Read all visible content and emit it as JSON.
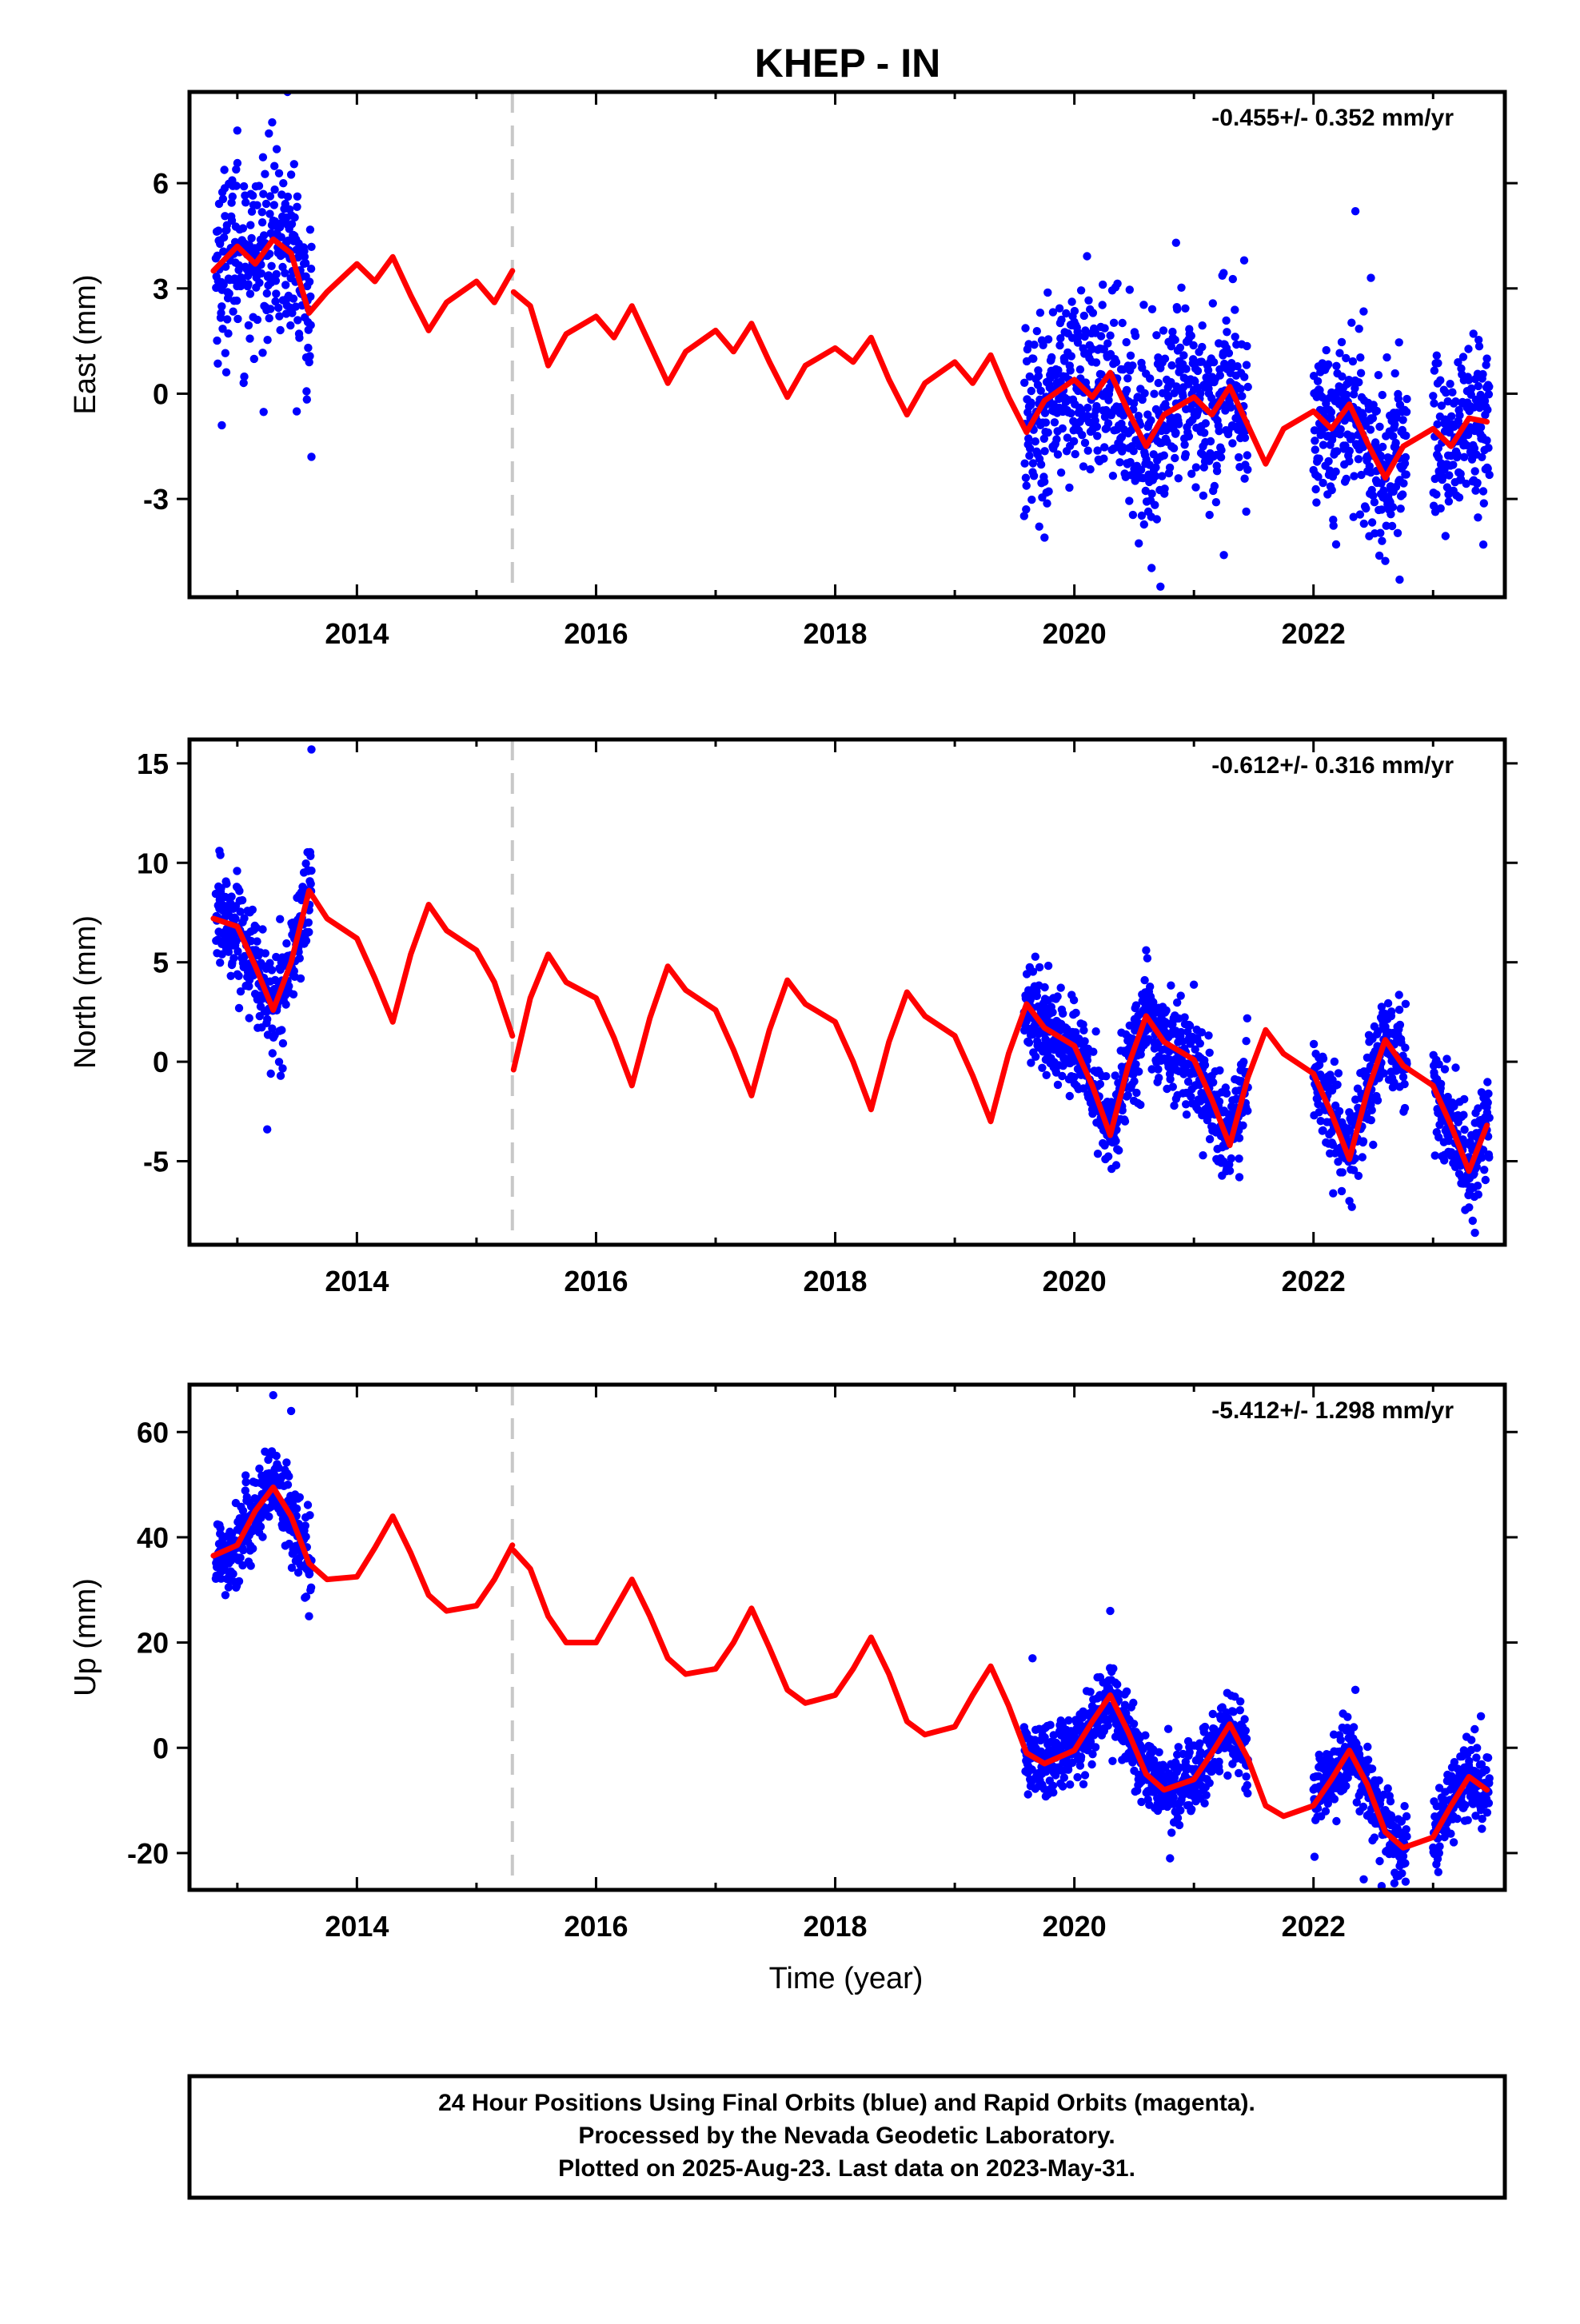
{
  "title": "KHEP - IN",
  "xlabel": "Time (year)",
  "footer": {
    "line1": "24 Hour Positions Using Final Orbits (blue) and Rapid Orbits (magenta).",
    "line2": "Processed by the Nevada Geodetic Laboratory.",
    "line3": "Plotted on 2025-Aug-23. Last data on 2023-May-31."
  },
  "colors": {
    "observations": "#0000ff",
    "model": "#ff0000",
    "step": "#c8c8c8",
    "frame": "#000000"
  },
  "chart_data": [
    {
      "type": "scatter",
      "ylabel": "East (mm)",
      "rate": "-0.455+/- 0.352 mm/yr",
      "xlim": [
        2012.6,
        2023.6
      ],
      "ylim": [
        -5.8,
        8.6
      ],
      "xticks": [
        "2014",
        "2016",
        "2018",
        "2020",
        "2022"
      ],
      "yticks": [
        "-3",
        "0",
        "3",
        "6"
      ],
      "step_at": 2015.3,
      "model": {
        "x": [
          2012.8,
          2013.0,
          2013.15,
          2013.3,
          2013.45,
          2013.6,
          2013.75,
          2014.0,
          2014.15,
          2014.3,
          2014.45,
          2014.6,
          2014.75,
          2015.0,
          2015.15,
          2015.3,
          2015.31,
          2015.45,
          2015.6,
          2015.75,
          2016.0,
          2016.15,
          2016.3,
          2016.45,
          2016.6,
          2016.75,
          2017.0,
          2017.15,
          2017.3,
          2017.45,
          2017.6,
          2017.75,
          2018.0,
          2018.15,
          2018.3,
          2018.45,
          2018.6,
          2018.75,
          2019.0,
          2019.15,
          2019.3,
          2019.45,
          2019.6,
          2019.75,
          2020.0,
          2020.15,
          2020.3,
          2020.45,
          2020.6,
          2020.75,
          2021.0,
          2021.15,
          2021.3,
          2021.45,
          2021.6,
          2021.75,
          2022.0,
          2022.15,
          2022.3,
          2022.45,
          2022.6,
          2022.75,
          2023.0,
          2023.15,
          2023.3,
          2023.45
        ],
        "y": [
          3.5,
          4.2,
          3.7,
          4.4,
          4.0,
          2.3,
          2.9,
          3.7,
          3.2,
          3.9,
          2.8,
          1.8,
          2.6,
          3.2,
          2.6,
          3.5,
          2.9,
          2.5,
          0.8,
          1.7,
          2.2,
          1.6,
          2.5,
          1.4,
          0.3,
          1.2,
          1.8,
          1.2,
          2.0,
          0.9,
          -0.1,
          0.8,
          1.3,
          0.9,
          1.6,
          0.4,
          -0.6,
          0.3,
          0.9,
          0.3,
          1.1,
          -0.1,
          -1.1,
          -0.2,
          0.4,
          -0.1,
          0.6,
          -0.5,
          -1.5,
          -0.6,
          -0.1,
          -0.6,
          0.2,
          -0.9,
          -2.0,
          -1.0,
          -0.5,
          -1.0,
          -0.3,
          -1.4,
          -2.4,
          -1.5,
          -1.0,
          -1.5,
          -0.7,
          -0.8
        ]
      },
      "observation_spans": [
        {
          "from": 2012.82,
          "to": 2013.62,
          "spread": 1.3,
          "outliers": [
            [
              2013.0,
              7.5
            ],
            [
              2013.42,
              8.6
            ],
            [
              2013.62,
              -1.8
            ],
            [
              2012.87,
              -0.9
            ]
          ]
        },
        {
          "from": 2019.58,
          "to": 2021.45,
          "spread": 1.3,
          "outliers": [
            [
              2020.85,
              4.3
            ],
            [
              2020.72,
              -5.5
            ],
            [
              2019.75,
              -4.1
            ],
            [
              2021.25,
              -4.6
            ],
            [
              2021.42,
              3.8
            ]
          ]
        },
        {
          "from": 2022.0,
          "to": 2022.78,
          "spread": 1.2,
          "outliers": [
            [
              2022.35,
              5.2
            ],
            [
              2022.48,
              3.3
            ],
            [
              2022.72,
              -5.3
            ]
          ]
        },
        {
          "from": 2023.0,
          "to": 2023.47,
          "spread": 1.3,
          "outliers": [
            [
              2023.42,
              -4.3
            ],
            [
              2023.45,
              1.0
            ]
          ]
        }
      ]
    },
    {
      "type": "scatter",
      "ylabel": "North (mm)",
      "rate": "-0.612+/- 0.316 mm/yr",
      "xlim": [
        2012.6,
        2023.6
      ],
      "ylim": [
        -9.2,
        16.2
      ],
      "xticks": [
        "2014",
        "2016",
        "2018",
        "2020",
        "2022"
      ],
      "yticks": [
        "-5",
        "0",
        "5",
        "10",
        "15"
      ],
      "step_at": 2015.3,
      "model": {
        "x": [
          2012.8,
          2013.0,
          2013.15,
          2013.3,
          2013.45,
          2013.6,
          2013.75,
          2014.0,
          2014.15,
          2014.3,
          2014.45,
          2014.6,
          2014.75,
          2015.0,
          2015.15,
          2015.3,
          2015.31,
          2015.45,
          2015.6,
          2015.75,
          2016.0,
          2016.15,
          2016.3,
          2016.45,
          2016.6,
          2016.75,
          2017.0,
          2017.15,
          2017.3,
          2017.45,
          2017.6,
          2017.75,
          2018.0,
          2018.15,
          2018.3,
          2018.45,
          2018.6,
          2018.75,
          2019.0,
          2019.15,
          2019.3,
          2019.45,
          2019.6,
          2019.75,
          2020.0,
          2020.15,
          2020.3,
          2020.45,
          2020.6,
          2020.75,
          2021.0,
          2021.15,
          2021.3,
          2021.45,
          2021.6,
          2021.75,
          2022.0,
          2022.15,
          2022.3,
          2022.45,
          2022.6,
          2022.75,
          2023.0,
          2023.15,
          2023.3,
          2023.45
        ],
        "y": [
          7.2,
          6.8,
          4.8,
          2.6,
          5.0,
          8.6,
          7.2,
          6.2,
          4.2,
          2.0,
          5.4,
          7.9,
          6.6,
          5.6,
          4.0,
          1.3,
          -0.4,
          3.2,
          5.4,
          4.0,
          3.2,
          1.2,
          -1.2,
          2.2,
          4.8,
          3.6,
          2.6,
          0.6,
          -1.7,
          1.6,
          4.1,
          2.9,
          2.0,
          0.0,
          -2.4,
          1.0,
          3.5,
          2.3,
          1.3,
          -0.7,
          -3.0,
          0.4,
          2.9,
          1.7,
          0.8,
          -1.2,
          -3.7,
          -0.2,
          2.3,
          1.0,
          0.1,
          -1.9,
          -4.2,
          -0.8,
          1.6,
          0.4,
          -0.6,
          -2.6,
          -4.9,
          -1.5,
          1.1,
          -0.2,
          -1.2,
          -3.2,
          -5.5,
          -3.2
        ]
      },
      "observation_spans": [
        {
          "from": 2012.82,
          "to": 2013.62,
          "spread": 1.3,
          "outliers": [
            [
              2012.85,
              10.6
            ],
            [
              2013.62,
              15.7
            ],
            [
              2013.25,
              -3.4
            ],
            [
              2013.28,
              -0.6
            ]
          ]
        },
        {
          "from": 2019.58,
          "to": 2021.45,
          "spread": 1.2,
          "outliers": [
            [
              2020.6,
              5.6
            ],
            [
              2020.35,
              -5.2
            ],
            [
              2021.38,
              -5.8
            ]
          ]
        },
        {
          "from": 2022.0,
          "to": 2022.78,
          "spread": 1.2,
          "outliers": [
            [
              2022.3,
              -7.0
            ],
            [
              2022.65,
              2.3
            ]
          ]
        },
        {
          "from": 2023.0,
          "to": 2023.47,
          "spread": 1.2,
          "outliers": [
            [
              2023.35,
              -8.6
            ],
            [
              2023.45,
              -2.3
            ]
          ]
        }
      ]
    },
    {
      "type": "scatter",
      "ylabel": "Up (mm)",
      "rate": "-5.412+/- 1.298 mm/yr",
      "xlim": [
        2012.6,
        2023.6
      ],
      "ylim": [
        -27,
        69
      ],
      "xticks": [
        "2014",
        "2016",
        "2018",
        "2020",
        "2022"
      ],
      "yticks": [
        "-20",
        "0",
        "20",
        "40",
        "60"
      ],
      "step_at": 2015.3,
      "model": {
        "x": [
          2012.8,
          2013.0,
          2013.15,
          2013.3,
          2013.45,
          2013.6,
          2013.75,
          2014.0,
          2014.15,
          2014.3,
          2014.45,
          2014.6,
          2014.75,
          2015.0,
          2015.15,
          2015.3,
          2015.31,
          2015.45,
          2015.6,
          2015.75,
          2016.0,
          2016.15,
          2016.3,
          2016.45,
          2016.6,
          2016.75,
          2017.0,
          2017.15,
          2017.3,
          2017.45,
          2017.6,
          2017.75,
          2018.0,
          2018.15,
          2018.3,
          2018.45,
          2018.6,
          2018.75,
          2019.0,
          2019.15,
          2019.3,
          2019.45,
          2019.6,
          2019.75,
          2020.0,
          2020.15,
          2020.3,
          2020.45,
          2020.6,
          2020.75,
          2021.0,
          2021.15,
          2021.3,
          2021.45,
          2021.6,
          2021.75,
          2022.0,
          2022.15,
          2022.3,
          2022.45,
          2022.6,
          2022.75,
          2023.0,
          2023.15,
          2023.3,
          2023.45
        ],
        "y": [
          36.5,
          38.5,
          45,
          49.5,
          44,
          35,
          32,
          32.5,
          38,
          44,
          37,
          29,
          26,
          27,
          32,
          38.5,
          37.5,
          34,
          25,
          20,
          20,
          26,
          32,
          25,
          17,
          14,
          15,
          20,
          26.5,
          19,
          11,
          8.5,
          10,
          15,
          21,
          14,
          5,
          2.5,
          4,
          10,
          15.5,
          8,
          -1,
          -3,
          -0.5,
          5,
          10,
          3,
          -5,
          -8,
          -6,
          -1,
          4.5,
          -2,
          -11,
          -13,
          -11,
          -6,
          -0.5,
          -7,
          -16,
          -19,
          -17,
          -11,
          -5.5,
          -8
        ]
      },
      "observation_spans": [
        {
          "from": 2012.82,
          "to": 2013.62,
          "spread": 4.0,
          "outliers": [
            [
              2013.3,
              67
            ],
            [
              2013.45,
              64
            ],
            [
              2013.6,
              25
            ],
            [
              2012.9,
              29
            ]
          ]
        },
        {
          "from": 2019.58,
          "to": 2021.45,
          "spread": 3.5,
          "outliers": [
            [
              2020.3,
              26
            ],
            [
              2020.8,
              -21
            ],
            [
              2019.65,
              17
            ]
          ]
        },
        {
          "from": 2022.0,
          "to": 2022.78,
          "spread": 3.5,
          "outliers": [
            [
              2022.42,
              -25
            ],
            [
              2022.35,
              11
            ]
          ]
        },
        {
          "from": 2023.0,
          "to": 2023.47,
          "spread": 3.5,
          "outliers": [
            [
              2023.05,
              -20
            ],
            [
              2023.4,
              6
            ]
          ]
        }
      ]
    }
  ]
}
